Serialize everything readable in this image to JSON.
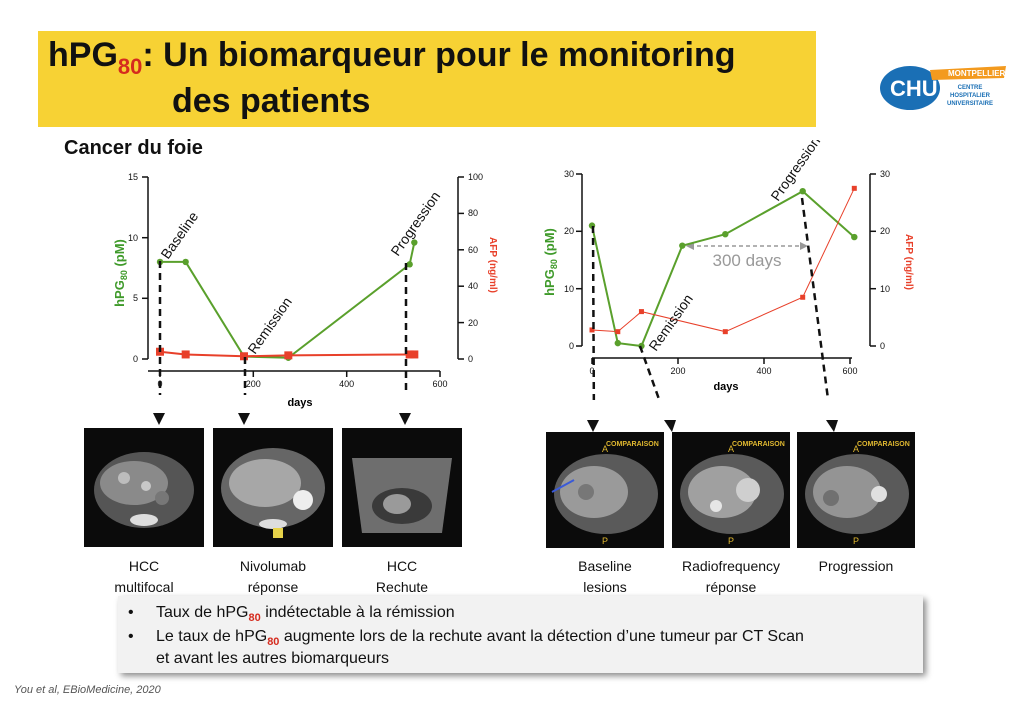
{
  "title": {
    "prefix": "hPG",
    "sub": "80",
    "rest": ": Un biomarqueur pour le monitoring",
    "line2": "des patients"
  },
  "logo": {
    "brand": "CHU",
    "city": "MONTPELLIER",
    "line1": "CENTRE",
    "line2": "HOSPITALIER",
    "line3": "UNIVERSITAIRE"
  },
  "subtitle": "Cancer du foie",
  "charts": [
    {
      "ylabel_main": "hPG",
      "ylabel_sub": "80",
      "ylabel_unit": " (pM)",
      "y2label": "AFP (ng/ml)",
      "xlabel": "days",
      "yticks": [
        "0",
        "5",
        "10",
        "15"
      ],
      "y2ticks": [
        "0",
        "20",
        "40",
        "60",
        "80",
        "100"
      ],
      "xticks": [
        "0",
        "200",
        "400",
        "600"
      ],
      "annotations": [
        "Baseline",
        "Remission",
        "Progression"
      ]
    },
    {
      "ylabel_main": "hPG",
      "ylabel_sub": "80",
      "ylabel_unit": " (pM)",
      "y2label": "AFP (ng/ml)",
      "xlabel": "days",
      "yticks": [
        "0",
        "10",
        "20",
        "30"
      ],
      "y2ticks": [
        "0",
        "10",
        "20",
        "30"
      ],
      "xticks": [
        "0",
        "200",
        "400",
        "600"
      ],
      "annotations": [
        "Remission",
        "Progression"
      ],
      "interval_label": "300 days"
    }
  ],
  "chart_data": [
    {
      "type": "line",
      "xlim": [
        0,
        600
      ],
      "ylim": [
        0,
        15
      ],
      "y2lim": [
        0,
        100
      ],
      "series": [
        {
          "axis": "left",
          "color": "#5aa02c",
          "x": [
            0,
            55,
            180,
            275,
            535,
            545
          ],
          "y": [
            8,
            8,
            0.2,
            0.1,
            7.8,
            9.6
          ]
        },
        {
          "axis": "right",
          "color": "#e8402a",
          "x": [
            0,
            55,
            180,
            275,
            535,
            545
          ],
          "y": [
            4,
            2.5,
            1.5,
            2,
            2.5,
            2.5
          ]
        }
      ]
    },
    {
      "type": "line",
      "xlim": [
        0,
        600
      ],
      "ylim": [
        0,
        30
      ],
      "y2lim": [
        0,
        30
      ],
      "series": [
        {
          "axis": "left",
          "color": "#5aa02c",
          "x": [
            0,
            60,
            115,
            210,
            310,
            490,
            610
          ],
          "y": [
            21,
            0.5,
            0,
            17.5,
            19.5,
            27,
            19
          ]
        },
        {
          "axis": "right",
          "color": "#e8402a",
          "x": [
            0,
            60,
            115,
            310,
            490,
            610
          ],
          "y": [
            2.8,
            2.5,
            6,
            2.5,
            8.5,
            27.5
          ]
        }
      ]
    }
  ],
  "scans_left": [
    {
      "caption1": "HCC",
      "caption2": "multifocal"
    },
    {
      "caption1": "Nivolumab",
      "caption2": "réponse"
    },
    {
      "caption1": "HCC",
      "caption2": "Rechute"
    }
  ],
  "scans_right": [
    {
      "caption1": "Baseline",
      "caption2": "lesions",
      "overlay": "COMPARAISON"
    },
    {
      "caption1": "Radiofrequency",
      "caption2": "réponse",
      "overlay": "COMPARAISON"
    },
    {
      "caption1": "Progression",
      "caption2": "",
      "overlay": "COMPARAISON"
    }
  ],
  "bullets": [
    {
      "pre": "Taux de hPG",
      "sub": "80",
      "post": " indétectable à la rémission"
    },
    {
      "pre": "Le taux de hPG",
      "sub": "80",
      "post": " augmente lors de la rechute avant la détection d’une tumeur par CT Scan",
      "line2": "et avant les autres biomarqueurs"
    }
  ],
  "citation": "You et al, EBioMedicine, 2020",
  "colors": {
    "title_bg": "#f7d234",
    "green": "#5aa02c",
    "red": "#e8402a",
    "sub_red": "#d52b1e"
  }
}
